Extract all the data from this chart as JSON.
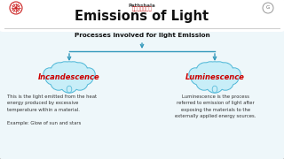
{
  "title": "Emissions of Light",
  "subtitle": "Processes involved for light Emission",
  "left_cloud_label": "Incandescence",
  "right_cloud_label": "Luminescence",
  "left_text": "This is the light emitted from the heat\nenergy produced by excessive\ntemperature within a material.\n\nExample: Glow of sun and stars",
  "right_text": "Luminescence is the process\nreferred to emission of light after\nexposing the materials to the\nexternally applied energy sources.",
  "bg_color": "#eef7fa",
  "outer_bg": "#d8eef5",
  "title_bg": "#ffffff",
  "title_color": "#111111",
  "subtitle_color": "#111111",
  "cloud_fill": "#c8eef8",
  "cloud_edge": "#50b8d8",
  "left_label_color": "#cc0000",
  "right_label_color": "#cc0000",
  "arrow_color": "#3399bb",
  "body_text_color": "#333333",
  "border_color": "#bbbbbb",
  "right_text_color": "#333333"
}
